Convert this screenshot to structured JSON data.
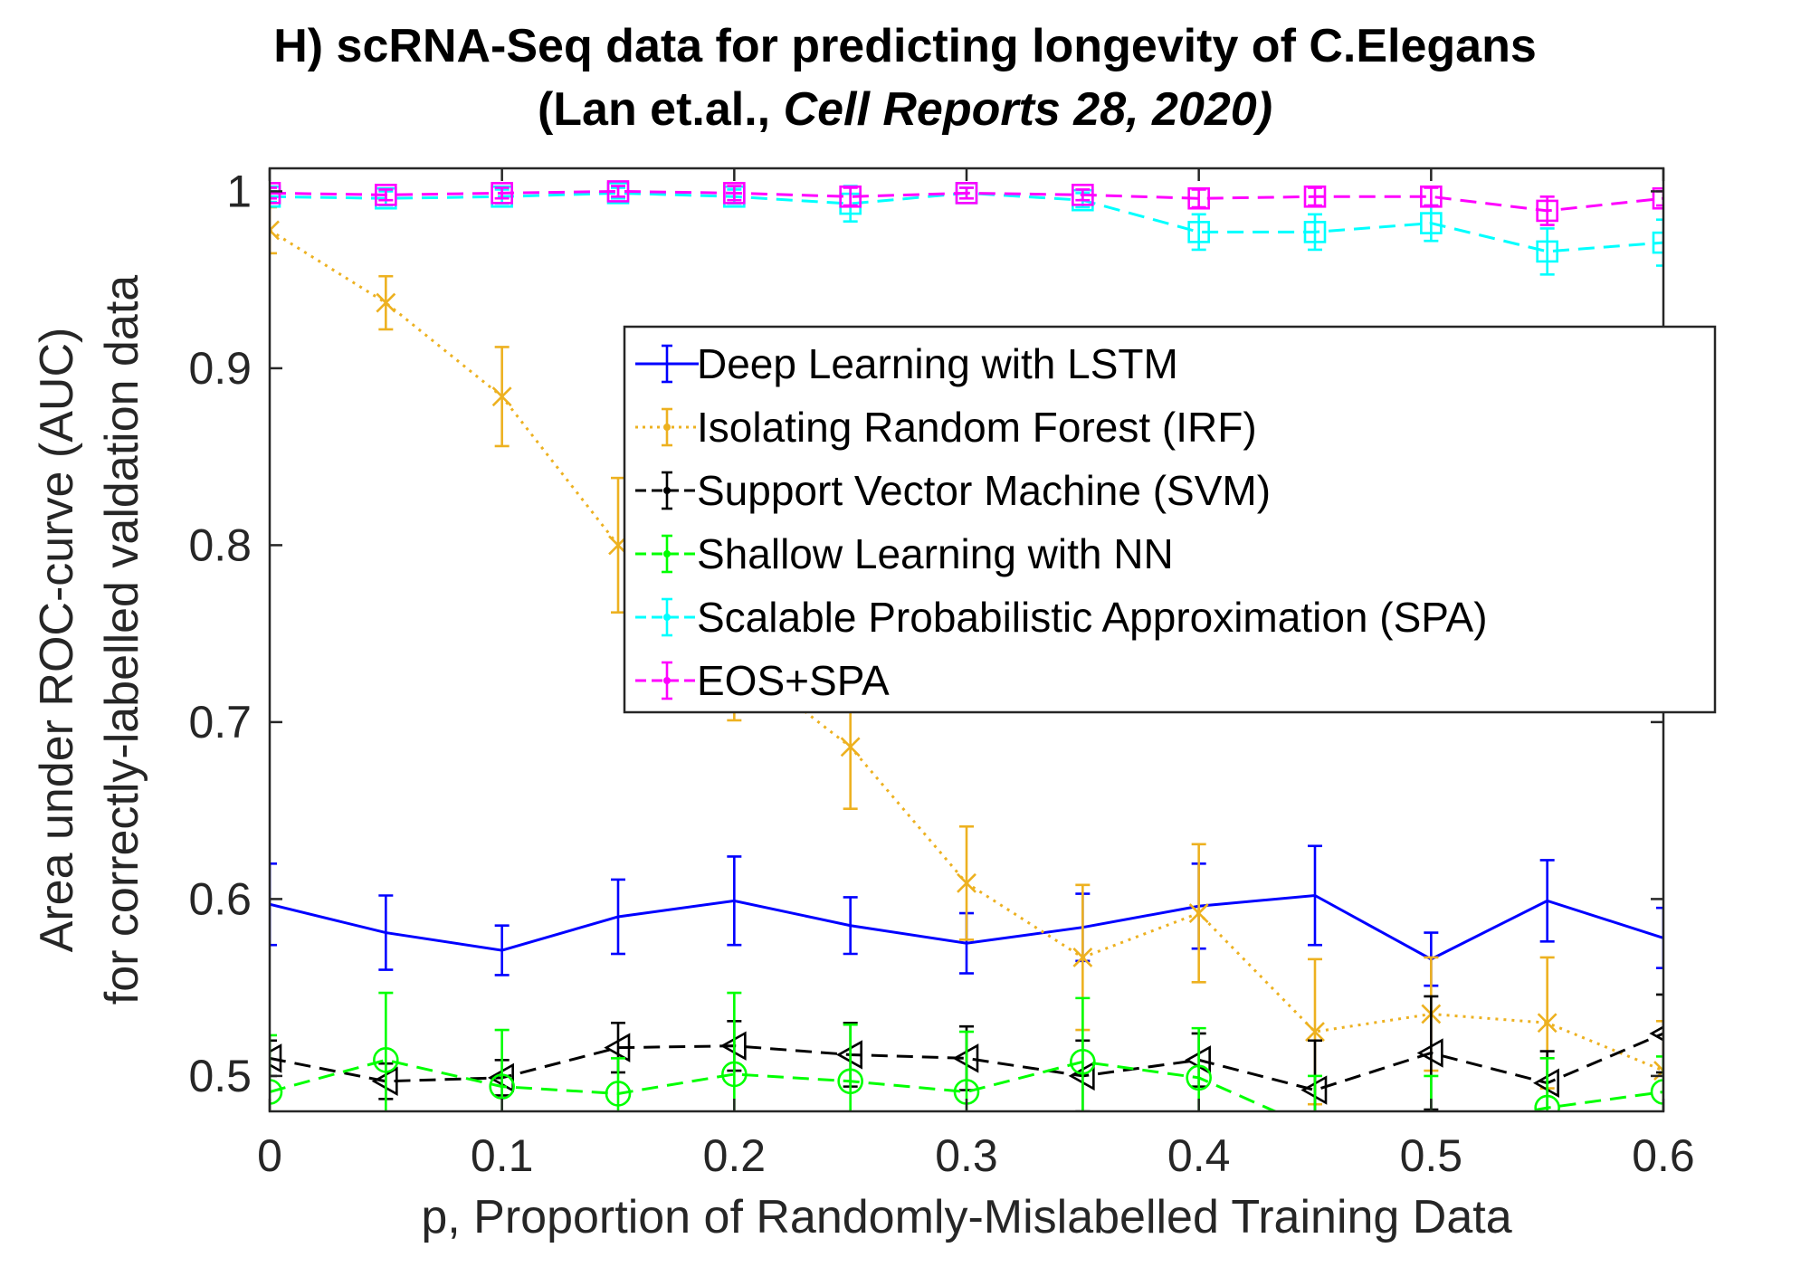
{
  "chart_data": {
    "type": "line",
    "title_line1": "H) scRNA-Seq data for predicting longevity of C.Elegans",
    "title_line2_prefix": "(Lan et.al., ",
    "title_line2_italic": "Cell Reports 28, 2020)",
    "xlabel": "p, Proportion of Randomly-Mislabelled Training Data",
    "ylabel_line1": "Area under ROC-curve (AUC)",
    "ylabel_line2": "for correctly-labelled valdation data",
    "xlim": [
      0,
      0.6
    ],
    "ylim": [
      0.48,
      1.013
    ],
    "xticks": [
      0,
      0.1,
      0.2,
      0.3,
      0.4,
      0.5,
      0.6
    ],
    "xtick_labels": [
      "0",
      "0.1",
      "0.2",
      "0.3",
      "0.4",
      "0.5",
      "0.6"
    ],
    "yticks": [
      0.5,
      0.6,
      0.7,
      0.8,
      0.9,
      1.0
    ],
    "ytick_labels": [
      "0.5",
      "0.6",
      "0.7",
      "0.8",
      "0.9",
      "1"
    ],
    "legend_position": "center-right",
    "x": [
      0,
      0.05,
      0.1,
      0.15,
      0.2,
      0.25,
      0.3,
      0.35,
      0.4,
      0.45,
      0.5,
      0.55,
      0.6
    ],
    "series": [
      {
        "name": "Deep Learning with LSTM",
        "color": "#0000ff",
        "line": "solid",
        "marker": "none",
        "values": [
          0.597,
          0.581,
          0.571,
          0.59,
          0.599,
          0.585,
          0.575,
          0.584,
          0.596,
          0.602,
          0.566,
          0.599,
          0.578
        ],
        "errors": [
          0.023,
          0.021,
          0.014,
          0.021,
          0.025,
          0.016,
          0.017,
          0.019,
          0.024,
          0.028,
          0.015,
          0.023,
          0.017
        ]
      },
      {
        "name": "Isolating Random Forest (IRF)",
        "color": "#edb120",
        "line": "dotted",
        "marker": "x",
        "values": [
          0.978,
          0.937,
          0.884,
          0.8,
          0.737,
          0.686,
          0.609,
          0.567,
          0.592,
          0.525,
          0.535,
          0.53,
          0.503
        ],
        "errors": [
          0.013,
          0.015,
          0.028,
          0.038,
          0.036,
          0.035,
          0.032,
          0.041,
          0.039,
          0.041,
          0.032,
          0.037,
          0.028
        ]
      },
      {
        "name": "Support Vector Machine (SVM)",
        "color": "#000000",
        "line": "dashed",
        "marker": "triangle-left",
        "values": [
          0.51,
          0.497,
          0.499,
          0.516,
          0.517,
          0.512,
          0.51,
          0.5,
          0.509,
          0.492,
          0.513,
          0.496,
          0.524
        ],
        "errors": [
          0.01,
          0.01,
          0.01,
          0.014,
          0.014,
          0.018,
          0.018,
          0.02,
          0.015,
          0.028,
          0.032,
          0.018,
          0.022
        ]
      },
      {
        "name": "Shallow Learning with NN",
        "color": "#00ff00",
        "line": "dashed",
        "marker": "circle",
        "values": [
          0.491,
          0.509,
          0.494,
          0.49,
          0.501,
          0.497,
          0.491,
          0.508,
          0.499,
          0.47,
          0.47,
          0.482,
          0.491
        ],
        "errors": [
          0.032,
          0.038,
          0.032,
          0.02,
          0.046,
          0.032,
          0.034,
          0.036,
          0.028,
          0.03,
          0.03,
          0.028,
          0.02
        ]
      },
      {
        "name": "Scalable Probabilistic Approximation (SPA)",
        "color": "#00ffff",
        "line": "dashed",
        "marker": "square",
        "values": [
          0.997,
          0.996,
          0.997,
          0.999,
          0.997,
          0.993,
          0.999,
          0.995,
          0.977,
          0.977,
          0.982,
          0.966,
          0.971
        ],
        "errors": [
          0.003,
          0.004,
          0.004,
          0.003,
          0.004,
          0.01,
          0.003,
          0.004,
          0.01,
          0.01,
          0.01,
          0.013,
          0.013
        ]
      },
      {
        "name": "EOS+SPA",
        "color": "#ff00ff",
        "line": "dashed",
        "marker": "square",
        "values": [
          0.999,
          0.998,
          0.999,
          1.0,
          0.999,
          0.997,
          0.999,
          0.998,
          0.996,
          0.997,
          0.997,
          0.989,
          0.996
        ],
        "errors": [
          0.003,
          0.003,
          0.003,
          0.003,
          0.004,
          0.005,
          0.003,
          0.003,
          0.005,
          0.005,
          0.005,
          0.008,
          0.004
        ]
      }
    ]
  }
}
